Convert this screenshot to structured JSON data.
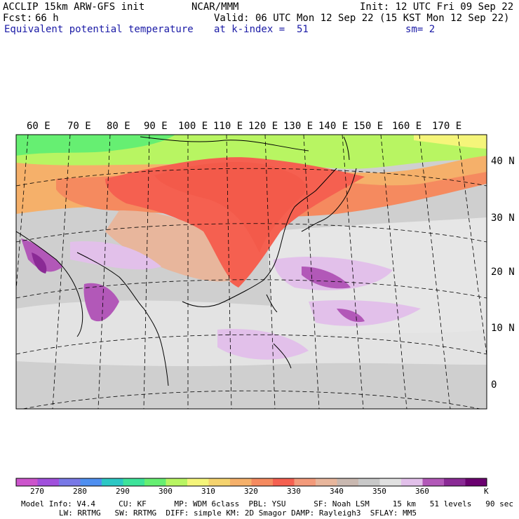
{
  "header": {
    "left_line1": "ACCLIP 15km ARW-GFS init",
    "left_line2_label": "Fcst:",
    "left_line2_value": "66 h",
    "field_name": "Equivalent potential temperature",
    "center_line1": "NCAR/MMM",
    "valid": "Valid: 06 UTC Mon 12 Sep 22 (15 KST Mon 12 Sep 22)",
    "level": "at k-index =  51",
    "init": "Init: 12 UTC Fri 09 Sep 22",
    "smoothing": "sm= 2"
  },
  "map": {
    "lon_labels": [
      "60 E",
      "70 E",
      "80 E",
      "90 E",
      "100 E",
      "110 E",
      "120 E",
      "130 E",
      "140 E",
      "150 E",
      "160 E",
      "170 E"
    ],
    "lat_labels": [
      "40 N",
      "30 N",
      "20 N",
      "10 N",
      "0"
    ]
  },
  "colorbar": {
    "unit": "K",
    "tick_labels": [
      "270",
      "280",
      "290",
      "300",
      "310",
      "320",
      "330",
      "340",
      "350",
      "360"
    ],
    "colors": [
      "#cc55cc",
      "#a050dc",
      "#7878e6",
      "#4f8ff0",
      "#2cc7c4",
      "#3de39a",
      "#66ef72",
      "#b8f562",
      "#f5f57a",
      "#f5d36e",
      "#f5b06a",
      "#f58a5f",
      "#f56050",
      "#f39a7a",
      "#e8b69c",
      "#c9b8b0",
      "#c8c8c8",
      "#e1e1e1",
      "#e2c0ea",
      "#b258b8",
      "#8a2a95",
      "#6b0070"
    ]
  },
  "footer": {
    "line1": "Model Info: V4.4     CU: KF      MP: WDM 6class  PBL: YSU      SF: Noah LSM     15 km   51 levels   90 sec",
    "line2": "LW: RRTMG   SW: RRTMG  DIFF: simple KM: 2D Smagor DAMP: Rayleigh3  SFLAY: MM5"
  }
}
